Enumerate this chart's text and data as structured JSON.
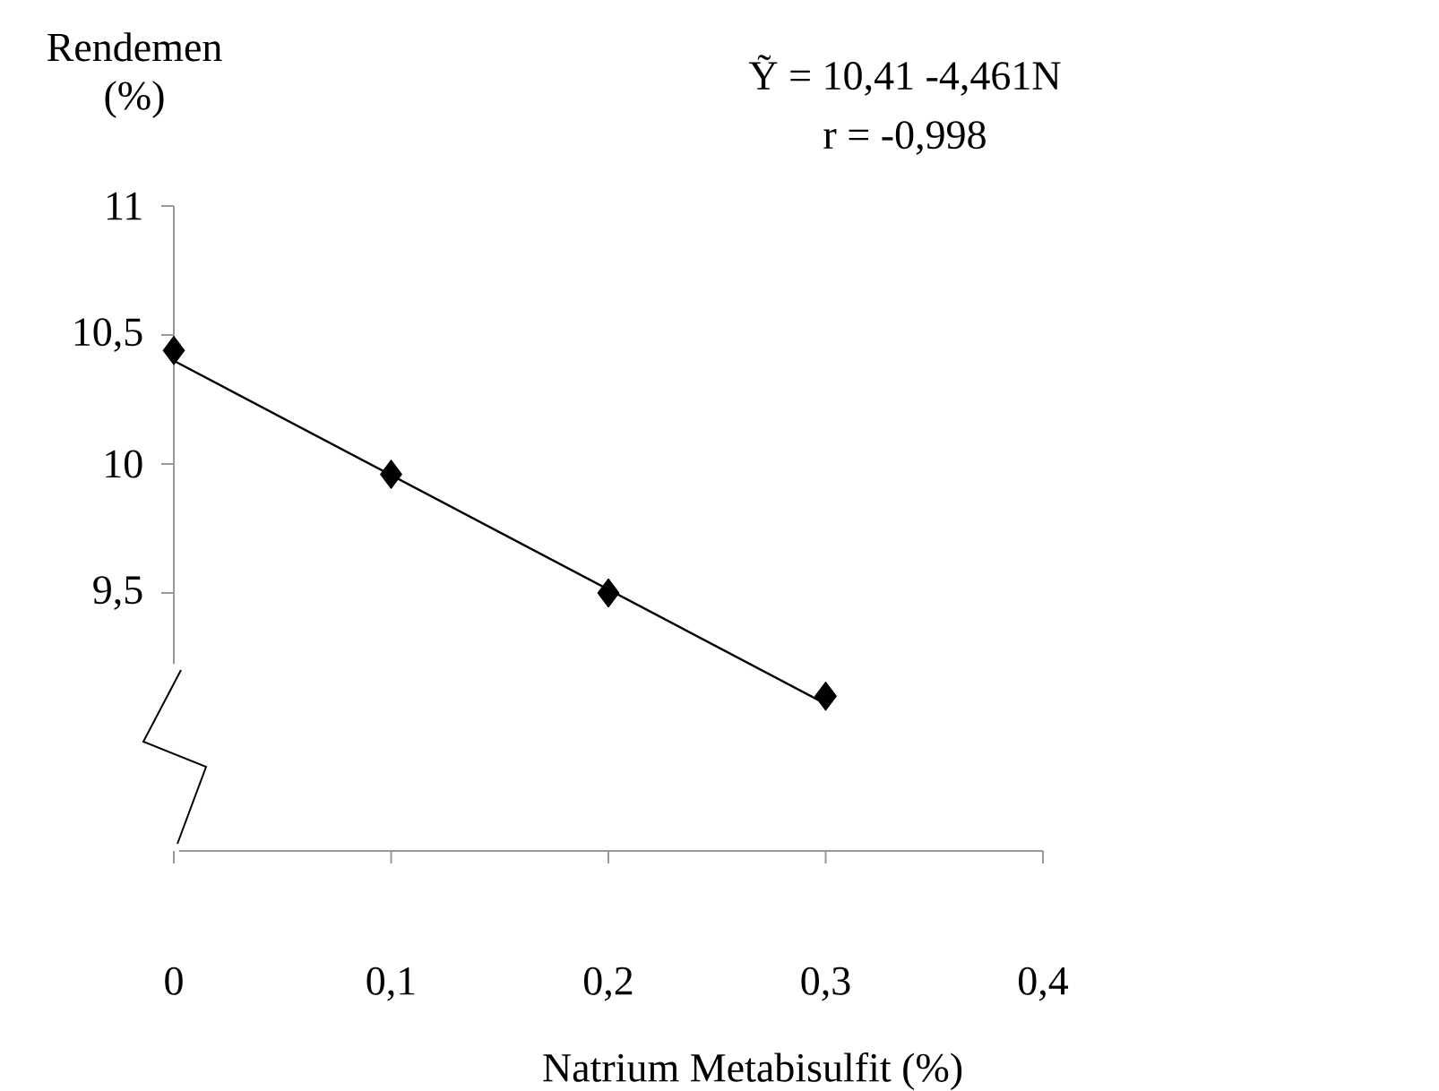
{
  "chart_data": {
    "type": "scatter",
    "xlabel": "Natrium Metabisulfit  (%)",
    "ylabel": "Rendemen (%)",
    "annotations": [
      "Ỹ = 10,41 -4,461N",
      "r = -0,998"
    ],
    "series": [
      {
        "color": "#000000",
        "marker": "diamond",
        "x": [
          0,
          0.1,
          0.2,
          0.3
        ],
        "values": [
          10.44,
          9.96,
          9.5,
          9.1
        ]
      },
      {
        "type": "line",
        "color": "#000000",
        "marker": "none",
        "line_style": "solid",
        "x": [
          0,
          0.3
        ],
        "values": [
          10.4,
          9.07
        ]
      }
    ],
    "xlim": [
      0,
      0.4
    ],
    "ylim": [
      8.5,
      11
    ],
    "xticks": [
      {
        "value": 0,
        "label": "0"
      },
      {
        "value": 0.1,
        "label": "0,1"
      },
      {
        "value": 0.2,
        "label": "0,2"
      },
      {
        "value": 0.3,
        "label": "0,3"
      },
      {
        "value": 0.4,
        "label": "0,4"
      }
    ],
    "yticks": [
      {
        "value": 9.5,
        "label": "9,5"
      },
      {
        "value": 10,
        "label": "10"
      },
      {
        "value": 10.5,
        "label": "10,5"
      },
      {
        "value": 11,
        "label": "11"
      }
    ],
    "grid": false
  }
}
